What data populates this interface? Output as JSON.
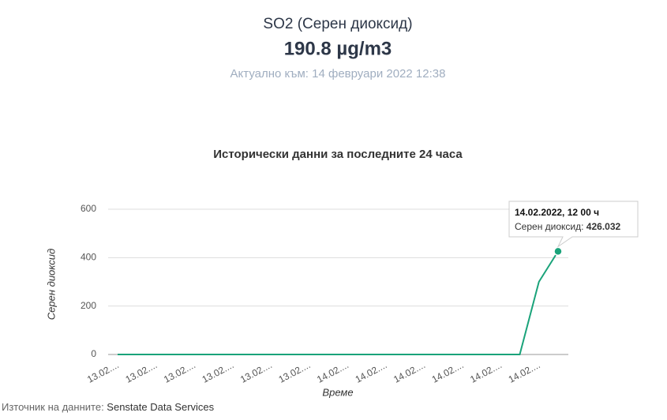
{
  "header": {
    "title": "SO2 (Серен диоксид)",
    "value": "190.8 µg/m3",
    "updated": "Актуално към: 14 февруари 2022 12:38"
  },
  "chart_data": {
    "type": "line",
    "title": "Исторически данни за последните 24 часа",
    "x_label": "Време",
    "y_label": "Серен диоксид",
    "categories": [
      "13.02....",
      null,
      "13.02....",
      null,
      "13.02....",
      null,
      "13.02....",
      null,
      "13.02....",
      null,
      "13.02....",
      null,
      "14.02....",
      null,
      "14.02....",
      null,
      "14.02....",
      null,
      "14.02....",
      null,
      "14.02....",
      null,
      "14.02....",
      null
    ],
    "values": [
      0,
      0,
      0,
      0,
      0,
      0,
      0,
      0,
      0,
      0,
      0,
      0,
      0,
      0,
      0,
      0,
      0,
      0,
      0,
      0,
      0,
      0,
      300,
      426.032
    ],
    "color": "#1aa37a",
    "ylim": [
      0,
      600
    ],
    "yticks": [
      0,
      200,
      400,
      600
    ],
    "grid": true,
    "tooltip": {
      "title": "14.02.2022, 12 00 ч",
      "label": "Серен диоксид: "
    }
  },
  "footer": {
    "label": "Източник на данните: ",
    "source": "Senstate Data Services"
  }
}
